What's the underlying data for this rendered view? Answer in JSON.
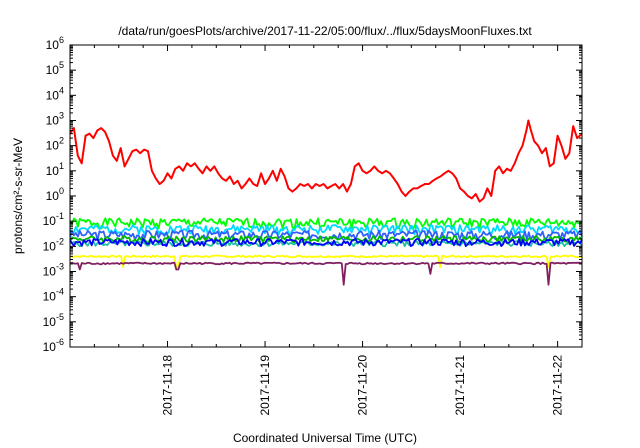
{
  "chart_data": {
    "type": "line",
    "title": "/data/run/goesPlots/archive/2017-11-22/05:00/flux/../flux/5daysMoonFluxes.txt",
    "xlabel": "Coordinated Universal Time (UTC)",
    "ylabel": "protons/cm²-s-sr-MeV",
    "yscale": "log",
    "ylim": [
      1e-06,
      1000000.0
    ],
    "xlim": [
      0,
      5.25
    ],
    "x_units": "days since 2017-11-17 00:00 UTC",
    "grid": false,
    "legend": "none",
    "y_ticks": [
      {
        "value": -6,
        "base": "10",
        "exp": "-6"
      },
      {
        "value": -5,
        "base": "10",
        "exp": "-5"
      },
      {
        "value": -4,
        "base": "10",
        "exp": "-4"
      },
      {
        "value": -3,
        "base": "10",
        "exp": "-3"
      },
      {
        "value": -2,
        "base": "10",
        "exp": "-2"
      },
      {
        "value": -1,
        "base": "10",
        "exp": "-1"
      },
      {
        "value": 0,
        "base": "10",
        "exp": "0"
      },
      {
        "value": 1,
        "base": "10",
        "exp": "1"
      },
      {
        "value": 2,
        "base": "10",
        "exp": "2"
      },
      {
        "value": 3,
        "base": "10",
        "exp": "3"
      },
      {
        "value": 4,
        "base": "10",
        "exp": "4"
      },
      {
        "value": 5,
        "base": "10",
        "exp": "5"
      },
      {
        "value": 6,
        "base": "10",
        "exp": "6"
      }
    ],
    "x_ticks": [
      {
        "value": 1,
        "label": "2017-11-18"
      },
      {
        "value": 2,
        "label": "2017-11-19"
      },
      {
        "value": 3,
        "label": "2017-11-20"
      },
      {
        "value": 4,
        "label": "2017-11-21"
      },
      {
        "value": 5,
        "label": "2017-11-22"
      }
    ],
    "series": [
      {
        "color": "#ff0000",
        "kind": "explicit",
        "points": [
          [
            0.0,
            300
          ],
          [
            0.04,
            500
          ],
          [
            0.08,
            40
          ],
          [
            0.12,
            20
          ],
          [
            0.16,
            250
          ],
          [
            0.2,
            300
          ],
          [
            0.24,
            200
          ],
          [
            0.28,
            400
          ],
          [
            0.32,
            500
          ],
          [
            0.36,
            350
          ],
          [
            0.4,
            150
          ],
          [
            0.44,
            40
          ],
          [
            0.48,
            25
          ],
          [
            0.52,
            80
          ],
          [
            0.56,
            15
          ],
          [
            0.6,
            30
          ],
          [
            0.64,
            60
          ],
          [
            0.68,
            70
          ],
          [
            0.72,
            50
          ],
          [
            0.76,
            70
          ],
          [
            0.8,
            60
          ],
          [
            0.84,
            10
          ],
          [
            0.88,
            5
          ],
          [
            0.92,
            3
          ],
          [
            0.96,
            4
          ],
          [
            1.0,
            8
          ],
          [
            1.04,
            5
          ],
          [
            1.08,
            12
          ],
          [
            1.12,
            15
          ],
          [
            1.16,
            10
          ],
          [
            1.2,
            20
          ],
          [
            1.24,
            15
          ],
          [
            1.28,
            20
          ],
          [
            1.32,
            12
          ],
          [
            1.36,
            8
          ],
          [
            1.4,
            15
          ],
          [
            1.44,
            10
          ],
          [
            1.48,
            15
          ],
          [
            1.52,
            8
          ],
          [
            1.56,
            5
          ],
          [
            1.6,
            4
          ],
          [
            1.64,
            6
          ],
          [
            1.68,
            3
          ],
          [
            1.72,
            4
          ],
          [
            1.76,
            2
          ],
          [
            1.8,
            3
          ],
          [
            1.84,
            5
          ],
          [
            1.88,
            3
          ],
          [
            1.92,
            2.5
          ],
          [
            1.96,
            8
          ],
          [
            2.0,
            3
          ],
          [
            2.04,
            5
          ],
          [
            2.08,
            10
          ],
          [
            2.12,
            4
          ],
          [
            2.16,
            12
          ],
          [
            2.2,
            6
          ],
          [
            2.24,
            2
          ],
          [
            2.28,
            1.5
          ],
          [
            2.32,
            2
          ],
          [
            2.36,
            3
          ],
          [
            2.4,
            2.5
          ],
          [
            2.44,
            3
          ],
          [
            2.48,
            2
          ],
          [
            2.52,
            3
          ],
          [
            2.56,
            2.5
          ],
          [
            2.6,
            3
          ],
          [
            2.64,
            2
          ],
          [
            2.68,
            2.5
          ],
          [
            2.72,
            3
          ],
          [
            2.76,
            2
          ],
          [
            2.8,
            3
          ],
          [
            2.84,
            1.5
          ],
          [
            2.88,
            3
          ],
          [
            2.92,
            15
          ],
          [
            2.96,
            20
          ],
          [
            3.0,
            10
          ],
          [
            3.04,
            8
          ],
          [
            3.08,
            10
          ],
          [
            3.12,
            15
          ],
          [
            3.16,
            10
          ],
          [
            3.2,
            8
          ],
          [
            3.24,
            10
          ],
          [
            3.28,
            8
          ],
          [
            3.32,
            5
          ],
          [
            3.36,
            3
          ],
          [
            3.4,
            1.5
          ],
          [
            3.44,
            1
          ],
          [
            3.48,
            1.5
          ],
          [
            3.52,
            2
          ],
          [
            3.56,
            2
          ],
          [
            3.6,
            2.5
          ],
          [
            3.64,
            3
          ],
          [
            3.68,
            3
          ],
          [
            3.72,
            4
          ],
          [
            3.76,
            5
          ],
          [
            3.8,
            6
          ],
          [
            3.84,
            8
          ],
          [
            3.88,
            10
          ],
          [
            3.92,
            8
          ],
          [
            3.96,
            5
          ],
          [
            4.0,
            2
          ],
          [
            4.04,
            1.5
          ],
          [
            4.08,
            1
          ],
          [
            4.12,
            0.8
          ],
          [
            4.16,
            1.2
          ],
          [
            4.2,
            0.6
          ],
          [
            4.24,
            0.8
          ],
          [
            4.28,
            2
          ],
          [
            4.32,
            1
          ],
          [
            4.36,
            10
          ],
          [
            4.4,
            15
          ],
          [
            4.44,
            8
          ],
          [
            4.48,
            12
          ],
          [
            4.52,
            10
          ],
          [
            4.56,
            20
          ],
          [
            4.6,
            50
          ],
          [
            4.64,
            100
          ],
          [
            4.68,
            400
          ],
          [
            4.7,
            1000
          ],
          [
            4.72,
            500
          ],
          [
            4.76,
            150
          ],
          [
            4.8,
            100
          ],
          [
            4.84,
            50
          ],
          [
            4.88,
            80
          ],
          [
            4.92,
            15
          ],
          [
            4.96,
            20
          ],
          [
            5.0,
            250
          ],
          [
            5.04,
            100
          ],
          [
            5.08,
            30
          ],
          [
            5.12,
            50
          ],
          [
            5.16,
            600
          ],
          [
            5.2,
            200
          ],
          [
            5.25,
            300
          ]
        ]
      },
      {
        "color": "#00ff00",
        "kind": "band",
        "base": 0.09,
        "amp": 0.28,
        "seed": 1
      },
      {
        "color": "#00d8ff",
        "kind": "band",
        "base": 0.05,
        "amp": 0.25,
        "seed": 2
      },
      {
        "color": "#3060ff",
        "kind": "band",
        "base": 0.03,
        "amp": 0.25,
        "seed": 3
      },
      {
        "color": "#00bb00",
        "kind": "band",
        "base": 0.02,
        "amp": 0.18,
        "seed": 4
      },
      {
        "color": "#20c0a0",
        "kind": "band",
        "base": 0.013,
        "amp": 0.15,
        "seed": 5
      },
      {
        "color": "#0000ff",
        "kind": "band",
        "base": 0.015,
        "amp": 0.2,
        "seed": 6
      },
      {
        "color": "#ffff00",
        "kind": "band",
        "base": 0.004,
        "amp": 0.05,
        "seed": 7,
        "dips": [
          [
            0.55,
            0.0015
          ],
          [
            1.1,
            0.0015
          ],
          [
            3.8,
            0.0015
          ],
          [
            4.9,
            0.0015
          ]
        ]
      },
      {
        "color": "#802060",
        "kind": "band",
        "base": 0.0021,
        "amp": 0.05,
        "seed": 8,
        "dips": [
          [
            0.1,
            0.0012
          ],
          [
            1.1,
            0.0012
          ],
          [
            2.8,
            0.0003
          ],
          [
            3.7,
            0.0008
          ],
          [
            4.9,
            0.0003
          ]
        ]
      }
    ]
  }
}
